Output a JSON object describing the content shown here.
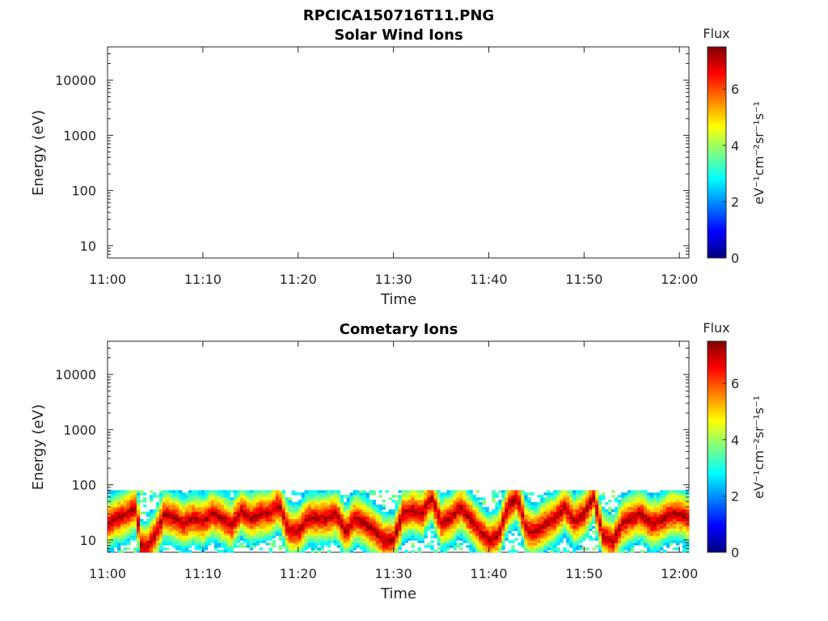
{
  "figure": {
    "filename": "RPCICA150716T11.PNG"
  },
  "colormap": {
    "name": "jet",
    "stops": [
      "#00007f",
      "#0000ff",
      "#007fff",
      "#00ffff",
      "#7fff7f",
      "#ffff00",
      "#ff7f00",
      "#ff0000",
      "#7f0000"
    ]
  },
  "chart_data": [
    {
      "type": "heatmap",
      "title": "Solar Wind Ions",
      "xlabel": "Time",
      "ylabel": "Energy (eV)",
      "x_tick_labels": [
        "11:00",
        "11:10",
        "11:20",
        "11:30",
        "11:40",
        "11:50",
        "12:00"
      ],
      "xlim": [
        "11:00",
        "12:01"
      ],
      "y_scale": "log",
      "y_tick_values": [
        10,
        100,
        1000,
        10000
      ],
      "y_tick_labels": [
        "10",
        "100",
        "1000",
        "10000"
      ],
      "ylim": [
        6,
        40000
      ],
      "colorbar": {
        "title": "Flux",
        "label": "eV⁻¹cm⁻²sr⁻¹s⁻¹",
        "ticks": [
          "0",
          "2",
          "4",
          "6"
        ],
        "range": [
          0,
          7.5
        ]
      },
      "data": "empty"
    },
    {
      "type": "heatmap",
      "title": "Cometary Ions",
      "xlabel": "Time",
      "ylabel": "Energy (eV)",
      "x_tick_labels": [
        "11:00",
        "11:10",
        "11:20",
        "11:30",
        "11:40",
        "11:50",
        "12:00"
      ],
      "xlim": [
        "11:00",
        "12:01"
      ],
      "y_scale": "log",
      "y_tick_values": [
        10,
        100,
        1000,
        10000
      ],
      "y_tick_labels": [
        "10",
        "100",
        "1000",
        "10000"
      ],
      "ylim": [
        6,
        40000
      ],
      "colorbar": {
        "title": "Flux",
        "label": "eV⁻¹cm⁻²sr⁻¹s⁻¹",
        "ticks": [
          "0",
          "2",
          "4",
          "6"
        ],
        "range": [
          0,
          7.5
        ]
      },
      "data_energy_range_eV": [
        6,
        80
      ],
      "peak_flux_series": {
        "time_minutes": [
          0,
          1,
          2,
          3,
          3.5,
          4,
          5,
          6,
          7,
          8,
          9,
          10,
          11,
          12,
          13,
          14,
          15,
          16,
          17,
          18,
          19,
          20,
          21,
          22,
          23,
          24,
          25,
          26,
          27,
          28,
          29,
          30,
          31,
          32,
          33,
          34,
          35,
          36,
          37,
          38,
          39,
          40,
          41,
          42,
          43,
          44,
          45,
          46,
          47,
          48,
          49,
          50,
          51,
          52,
          53,
          54,
          55,
          56,
          57,
          58,
          59,
          60,
          61
        ],
        "energy_eV": [
          20,
          25,
          30,
          40,
          8,
          7,
          12,
          30,
          25,
          20,
          25,
          22,
          30,
          25,
          18,
          35,
          25,
          30,
          30,
          45,
          15,
          14,
          25,
          25,
          25,
          30,
          14,
          25,
          20,
          15,
          10,
          10,
          30,
          35,
          30,
          60,
          20,
          25,
          40,
          25,
          15,
          10,
          12,
          40,
          60,
          15,
          14,
          20,
          25,
          40,
          22,
          30,
          60,
          12,
          9,
          20,
          25,
          30,
          20,
          22,
          30,
          30,
          25
        ]
      }
    }
  ]
}
